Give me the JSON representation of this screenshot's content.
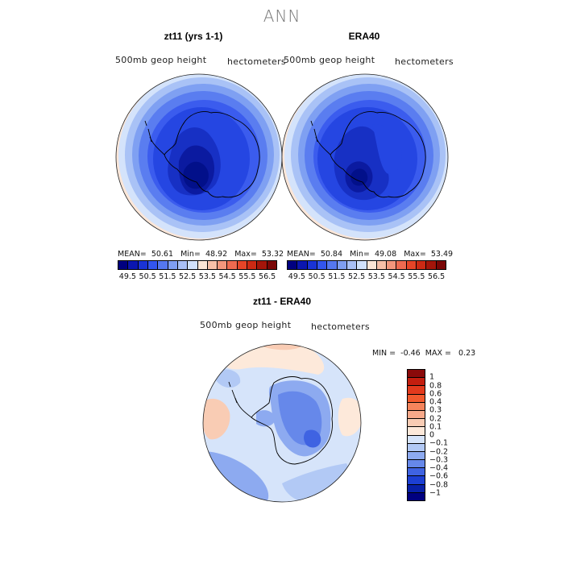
{
  "figure": {
    "title": "ANN",
    "panels": [
      {
        "title": "zt11 (yrs 1-1)",
        "variable": "500mb geop height",
        "units": "hectometers",
        "stats": {
          "mean_label": "MEAN=",
          "mean": "50.61",
          "min_label": "Min=",
          "min": "48.92",
          "max_label": "Max=",
          "max": "53.32"
        }
      },
      {
        "title": "ERA40",
        "variable": "500mb geop height",
        "units": "hectometers",
        "stats": {
          "mean_label": "MEAN=",
          "mean": "50.84",
          "min_label": "Min=",
          "min": "49.08",
          "max_label": "Max=",
          "max": "53.49"
        }
      },
      {
        "title": "zt11 - ERA40",
        "variable": "500mb geop height",
        "units": "hectometers",
        "stats": {
          "min_label": "MIN =",
          "min": "-0.46",
          "max_label": "MAX =",
          "max": "0.23"
        }
      }
    ],
    "colorbar_main": {
      "labels": [
        "49.5",
        "50.5",
        "51.5",
        "52.5",
        "53.5",
        "54.5",
        "55.5",
        "56.5"
      ],
      "colors": [
        "#000080",
        "#0b16b0",
        "#1a33d6",
        "#3355ee",
        "#5577f0",
        "#7f9ef2",
        "#a9c0f6",
        "#d1e1fb",
        "#fde6d6",
        "#f8c0a8",
        "#f3967c",
        "#ee6a50",
        "#e64528",
        "#cc2a14",
        "#a4150a",
        "#7a0606"
      ]
    },
    "colorbar_diff": {
      "labels": [
        "1",
        "0.8",
        "0.6",
        "0.4",
        "0.3",
        "0.2",
        "0.1",
        "0",
        "−0.1",
        "−0.2",
        "−0.3",
        "−0.4",
        "−0.6",
        "−0.8",
        "−1"
      ],
      "colors": [
        "#8a0a0a",
        "#c41e0f",
        "#e33a1d",
        "#f25a2e",
        "#f5845c",
        "#f7a98a",
        "#f9ccb4",
        "#fde9da",
        "#d6e4fa",
        "#b2c9f5",
        "#8daaf0",
        "#6688ea",
        "#3f63e2",
        "#1c3fd3",
        "#0820a8",
        "#000080"
      ]
    }
  }
}
